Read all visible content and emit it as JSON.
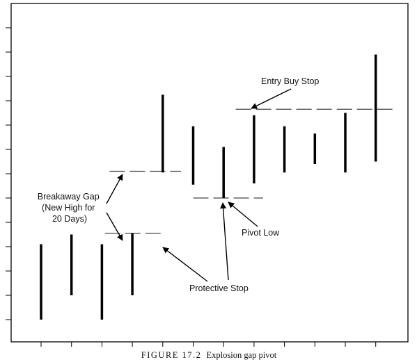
{
  "chart_data": {
    "type": "ohlc",
    "title": "",
    "xlabel": "",
    "ylabel": "",
    "axis_tick_labels_shown": false,
    "x": [
      1,
      2,
      3,
      4,
      5,
      6,
      7,
      8,
      9,
      10,
      11,
      12
    ],
    "bars": [
      {
        "x": 1,
        "high": 3.1,
        "low": 0.0
      },
      {
        "x": 2,
        "high": 3.5,
        "low": 1.0
      },
      {
        "x": 3,
        "high": 3.1,
        "low": 0.0
      },
      {
        "x": 4,
        "high": 3.55,
        "low": 1.0
      },
      {
        "x": 5,
        "high": 9.25,
        "low": 6.05
      },
      {
        "x": 6,
        "high": 7.95,
        "low": 5.55
      },
      {
        "x": 7,
        "high": 7.1,
        "low": 5.0
      },
      {
        "x": 8,
        "high": 8.4,
        "low": 5.6
      },
      {
        "x": 9,
        "high": 7.95,
        "low": 6.05
      },
      {
        "x": 10,
        "high": 7.65,
        "low": 6.4
      },
      {
        "x": 11,
        "high": 8.5,
        "low": 6.05
      },
      {
        "x": 12,
        "high": 10.9,
        "low": 6.5
      }
    ],
    "levels": [
      {
        "name": "breakaway-gap-upper",
        "y": 6.1,
        "x_start": 3.25,
        "x_end": 5.6
      },
      {
        "name": "breakaway-gap-lower",
        "y": 3.55,
        "x_start": 3.1,
        "x_end": 4.95
      },
      {
        "name": "pivot-low",
        "y": 5.0,
        "x_start": 6.0,
        "x_end": 8.3
      },
      {
        "name": "entry-buy-stop",
        "y": 8.65,
        "x_start": 7.4,
        "x_end": 12.7
      }
    ],
    "annotations": [
      {
        "key": "breakaway_gap",
        "lines": [
          "Breakaway Gap",
          "(New High for",
          "20 Days)"
        ]
      },
      {
        "key": "entry_buy_stop",
        "lines": [
          "Entry Buy Stop"
        ]
      },
      {
        "key": "pivot_low",
        "lines": [
          "Pivot Low"
        ]
      },
      {
        "key": "protective_stop",
        "lines": [
          "Protective Stop"
        ]
      }
    ],
    "legend": "none",
    "grid": false
  },
  "caption": {
    "label": "FIGURE 17.2",
    "text": "Explosion gap pivot"
  }
}
